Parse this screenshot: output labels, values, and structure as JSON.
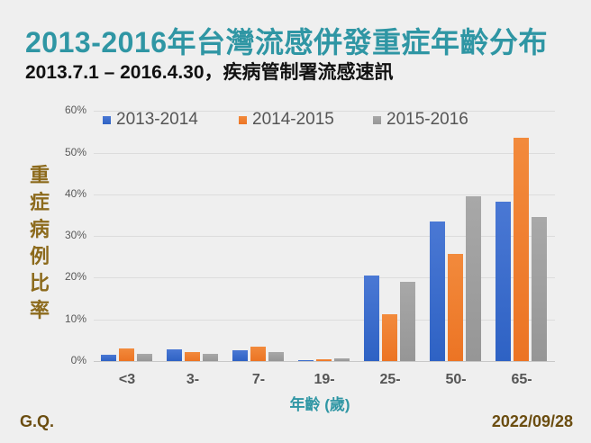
{
  "header": {
    "title": "2013-2016年台灣流感併發重症年齡分布",
    "subtitle": "2013.7.1 – 2016.4.30，疾病管制署流感速訊"
  },
  "footer": {
    "author": "G.Q.",
    "date": "2022/09/28"
  },
  "colors": {
    "title": "#2f96a4",
    "series_2013_2014": "#3b6dcc",
    "series_2014_2015": "#ef7d2e",
    "series_2015_2016": "#a0a0a0",
    "ylabel": "#8c6a1c",
    "footer": "#6b4d10"
  },
  "chart_data": {
    "type": "bar",
    "title": "2013-2016年台灣流感併發重症年齡分布",
    "subtitle": "2013.7.1 – 2016.4.30，疾病管制署流感速訊",
    "xlabel": "年齡 (歲)",
    "ylabel": "重症病例比率",
    "categories": [
      "<3",
      "3-",
      "7-",
      "19-",
      "25-",
      "50-",
      "65-"
    ],
    "series": [
      {
        "name": "2013-2014",
        "values": [
          1.5,
          2.8,
          2.5,
          0.3,
          20.5,
          33.5,
          38.2
        ]
      },
      {
        "name": "2014-2015",
        "values": [
          3.1,
          2.1,
          3.4,
          0.5,
          11.2,
          25.6,
          53.5
        ]
      },
      {
        "name": "2015-2016",
        "values": [
          1.7,
          1.7,
          2.2,
          0.6,
          19.1,
          39.5,
          34.6
        ]
      }
    ],
    "yticks": [
      "0%",
      "10%",
      "20%",
      "30%",
      "40%",
      "50%",
      "60%"
    ],
    "ylim": [
      0,
      60
    ],
    "grid": true,
    "legend_position": "top"
  }
}
